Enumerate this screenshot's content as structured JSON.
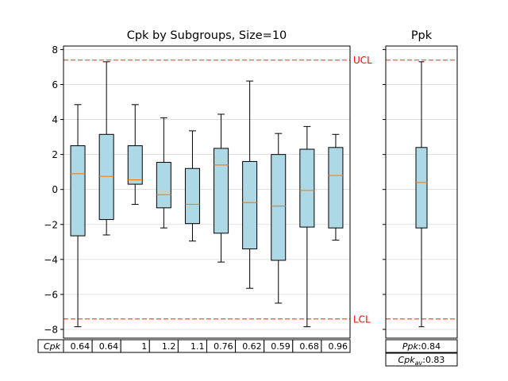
{
  "chart_data": [
    {
      "type": "box",
      "title": "Cpk by Subgroups, Size=10",
      "ylim": [
        -8.5,
        8.2
      ],
      "yticks": [
        -8,
        -6,
        -4,
        -2,
        0,
        2,
        4,
        6,
        8
      ],
      "grid": true,
      "control_limits": [
        {
          "label": "UCL",
          "value": 7.4,
          "color": "#ff0000"
        },
        {
          "label": "LCL",
          "value": -7.4,
          "color": "#ff0000"
        }
      ],
      "boxes": [
        {
          "whislo": -7.85,
          "q1": -2.65,
          "med": 0.9,
          "q3": 2.5,
          "whishi": 4.85
        },
        {
          "whislo": -2.6,
          "q1": -1.72,
          "med": 0.75,
          "q3": 3.15,
          "whishi": 7.3
        },
        {
          "whislo": -0.85,
          "q1": 0.3,
          "med": 0.55,
          "q3": 2.5,
          "whishi": 4.85
        },
        {
          "whislo": -2.2,
          "q1": -1.05,
          "med": -0.3,
          "q3": 1.55,
          "whishi": 4.1
        },
        {
          "whislo": -2.95,
          "q1": -1.95,
          "med": -0.85,
          "q3": 1.2,
          "whishi": 3.35
        },
        {
          "whislo": -4.15,
          "q1": -2.5,
          "med": 1.4,
          "q3": 2.35,
          "whishi": 4.3
        },
        {
          "whislo": -5.65,
          "q1": -3.4,
          "med": -0.75,
          "q3": 1.6,
          "whishi": 6.2
        },
        {
          "whislo": -6.5,
          "q1": -4.05,
          "med": -0.95,
          "q3": 2.0,
          "whishi": 3.2
        },
        {
          "whislo": -7.85,
          "q1": -2.15,
          "med": -0.05,
          "q3": 2.3,
          "whishi": 3.6
        },
        {
          "whislo": -2.9,
          "q1": -2.2,
          "med": 0.8,
          "q3": 2.4,
          "whishi": 3.15
        }
      ],
      "table": {
        "row_label": "Cpk",
        "values": [
          "0.64",
          "0.64",
          "1",
          "1.2",
          "1.1",
          "0.76",
          "0.62",
          "0.59",
          "0.68",
          "0.96"
        ]
      }
    },
    {
      "type": "box",
      "title": "Ppk",
      "ylim": [
        -8.5,
        8.2
      ],
      "grid": true,
      "control_limits": [
        {
          "label": "UCL",
          "value": 7.4,
          "color": "#ff0000"
        },
        {
          "label": "LCL",
          "value": -7.4,
          "color": "#ff0000"
        }
      ],
      "boxes": [
        {
          "whislo": -7.85,
          "q1": -2.2,
          "med": 0.4,
          "q3": 2.4,
          "whishi": 7.3
        }
      ],
      "table": {
        "rows": [
          {
            "label": "Ppk",
            "value": "0.84"
          },
          {
            "label": "Cpk",
            "label_sub": "av",
            "value": "0.83"
          }
        ]
      }
    }
  ]
}
